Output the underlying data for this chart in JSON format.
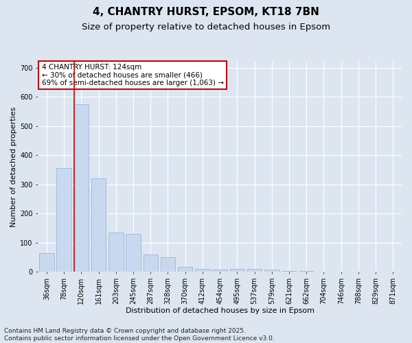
{
  "title_line1": "4, CHANTRY HURST, EPSOM, KT18 7BN",
  "title_line2": "Size of property relative to detached houses in Epsom",
  "xlabel": "Distribution of detached houses by size in Epsom",
  "ylabel": "Number of detached properties",
  "categories": [
    "36sqm",
    "78sqm",
    "120sqm",
    "161sqm",
    "203sqm",
    "245sqm",
    "287sqm",
    "328sqm",
    "370sqm",
    "412sqm",
    "454sqm",
    "495sqm",
    "537sqm",
    "579sqm",
    "621sqm",
    "662sqm",
    "704sqm",
    "746sqm",
    "788sqm",
    "829sqm",
    "871sqm"
  ],
  "values": [
    65,
    355,
    575,
    320,
    135,
    130,
    60,
    50,
    18,
    10,
    8,
    10,
    10,
    8,
    3,
    2,
    1,
    0,
    0,
    0,
    0
  ],
  "bar_color": "#c8d9ef",
  "bar_edge_color": "#9ab5d5",
  "vline_color": "#cc0000",
  "vline_index": 2,
  "annotation_text": "4 CHANTRY HURST: 124sqm\n← 30% of detached houses are smaller (466)\n69% of semi-detached houses are larger (1,063) →",
  "annotation_box_facecolor": "#ffffff",
  "annotation_box_edgecolor": "#cc0000",
  "ylim": [
    0,
    720
  ],
  "yticks": [
    0,
    100,
    200,
    300,
    400,
    500,
    600,
    700
  ],
  "background_color": "#dde6f0",
  "grid_color": "#ffffff",
  "footer": "Contains HM Land Registry data © Crown copyright and database right 2025.\nContains public sector information licensed under the Open Government Licence v3.0.",
  "title_fontsize": 11,
  "subtitle_fontsize": 9.5,
  "annotation_fontsize": 7.5,
  "axis_label_fontsize": 8,
  "tick_fontsize": 7,
  "footer_fontsize": 6.5,
  "font_family": "DejaVu Sans"
}
